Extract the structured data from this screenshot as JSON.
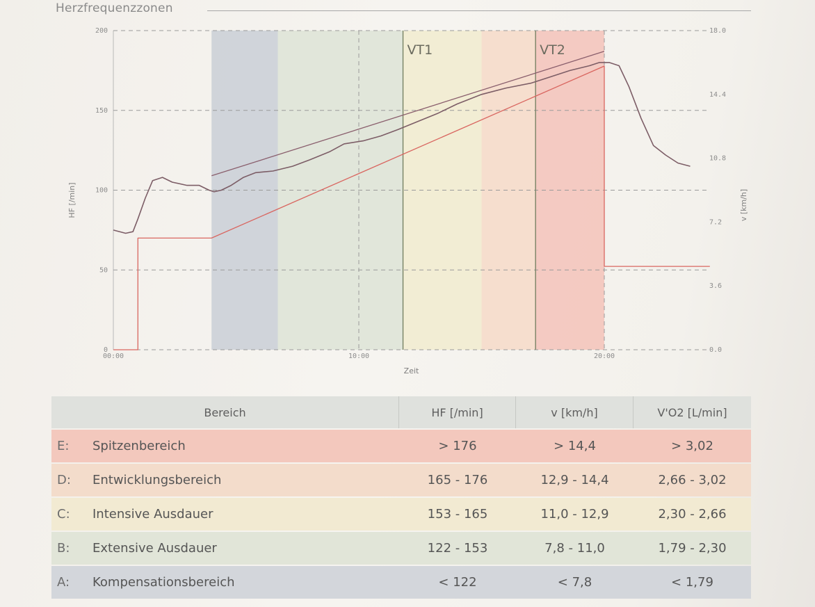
{
  "section_title": "Herzfrequenzzonen",
  "colors": {
    "zone_a": "#cdd2d8",
    "zone_b": "#dfe5d8",
    "zone_c": "#f1ecd2",
    "zone_d": "#f5dccb",
    "zone_e": "#f3c7bf",
    "hf_measured": "#7c5d66",
    "hf_fit": "#8a5f6d",
    "speed": "#d96660",
    "vt_line": "#6f7a5c"
  },
  "chart_data": {
    "type": "line",
    "xlabel": "Zeit",
    "x_ticks": [
      "00:00",
      "10:00",
      "20:00"
    ],
    "x_range_min": [
      0,
      24.3
    ],
    "y_left": {
      "label": "HF [/min]",
      "range": [
        0,
        200
      ],
      "ticks": [
        "0",
        "50",
        "100",
        "150",
        "200"
      ]
    },
    "y_right": {
      "label": "v [km/h]",
      "range": [
        0,
        18
      ],
      "ticks": [
        "0.0",
        "3.6",
        "7.2",
        "10.8",
        "14.4",
        "18.0"
      ]
    },
    "grid": "dashed",
    "zones": [
      {
        "id": "A",
        "from_min": 4.0,
        "to_min": 6.7
      },
      {
        "id": "B",
        "from_min": 6.7,
        "to_min": 11.8
      },
      {
        "id": "C",
        "from_min": 11.8,
        "to_min": 15.0
      },
      {
        "id": "D",
        "from_min": 15.0,
        "to_min": 17.2
      },
      {
        "id": "E",
        "from_min": 17.2,
        "to_min": 20.0
      }
    ],
    "thresholds": [
      {
        "label": "VT1",
        "x_min": 11.8
      },
      {
        "label": "VT2",
        "x_min": 17.2
      }
    ],
    "series": [
      {
        "axis": "left",
        "x": [
          0.0,
          0.5,
          0.8,
          1.0,
          1.3,
          1.6,
          2.0,
          2.4,
          3.0,
          3.5,
          3.9,
          4.1,
          4.4,
          4.8,
          5.3,
          5.8,
          6.5,
          7.3,
          8.0,
          8.8,
          9.4,
          10.2,
          10.9,
          11.6,
          12.4,
          13.2,
          14.0,
          15.0,
          16.0,
          17.0,
          17.8,
          18.6,
          19.4,
          19.8,
          20.2,
          20.6,
          21.0,
          21.5,
          22.0,
          22.5,
          23.0,
          23.5
        ],
        "y": [
          75,
          73,
          74,
          82,
          95,
          106,
          108,
          105,
          103,
          103,
          100,
          99,
          100,
          103,
          108,
          111,
          112,
          115,
          119,
          124,
          129,
          131,
          134,
          138,
          143,
          148,
          154,
          160,
          164,
          167,
          171,
          175,
          178,
          180,
          180,
          178,
          165,
          145,
          128,
          122,
          117,
          115
        ]
      },
      {
        "axis": "left",
        "x": [
          4.0,
          20.0
        ],
        "y": [
          109,
          187
        ]
      },
      {
        "axis": "right",
        "x": [
          0.0,
          1.0,
          1.0,
          4.0,
          20.0,
          20.0,
          24.3
        ],
        "y": [
          0,
          0,
          6.3,
          6.3,
          16.0,
          4.7,
          4.7
        ]
      }
    ]
  },
  "table": {
    "headers": [
      "Bereich",
      "HF [/min]",
      "v [km/h]",
      "V'O2 [L/min]"
    ],
    "rows": [
      {
        "letter": "E:",
        "name": "Spitzenbereich",
        "hf": "> 176",
        "v": "> 14,4",
        "vo2": "> 3,02"
      },
      {
        "letter": "D:",
        "name": "Entwicklungsbereich",
        "hf": "165 - 176",
        "v": "12,9 - 14,4",
        "vo2": "2,66 - 3,02"
      },
      {
        "letter": "C:",
        "name": "Intensive Ausdauer",
        "hf": "153 - 165",
        "v": "11,0 - 12,9",
        "vo2": "2,30 - 2,66"
      },
      {
        "letter": "B:",
        "name": "Extensive Ausdauer",
        "hf": "122 - 153",
        "v": "7,8 - 11,0",
        "vo2": "1,79 - 2,30"
      },
      {
        "letter": "A:",
        "name": "Kompensationsbereich",
        "hf": "< 122",
        "v": "< 7,8",
        "vo2": "< 1,79"
      }
    ]
  }
}
